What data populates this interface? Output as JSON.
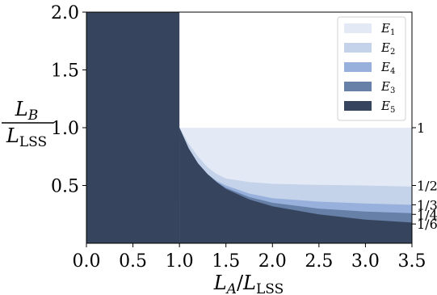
{
  "chart_data": {
    "type": "area",
    "xlim": [
      0.0,
      3.5
    ],
    "ylim": [
      0.0,
      2.0
    ],
    "x_ticks": [
      "0.0",
      "0.5",
      "1.0",
      "1.5",
      "2.0",
      "2.5",
      "3.0",
      "3.5"
    ],
    "y_ticks": [
      "0.5",
      "1.0",
      "1.5",
      "2.0"
    ],
    "right_ticks": [
      {
        "label": "1",
        "y": 1.0
      },
      {
        "label": "1/2",
        "y": 0.5
      },
      {
        "label": "1/3",
        "y": 0.333
      },
      {
        "label": "1/4",
        "y": 0.25
      },
      {
        "label": "1/6",
        "y": 0.167
      }
    ],
    "xlabel": {
      "main": "L",
      "sub1": "A",
      "slash": "/",
      "main2": "L",
      "sub2": "LSS"
    },
    "ylabel": {
      "top": "L",
      "top_sub": "B",
      "bottom": "L",
      "bottom_sub": "LSS"
    },
    "legend_position": "top-right",
    "regions": [
      {
        "name": "E",
        "sub": "1",
        "color": "#e3eaf5",
        "description": "region above 1/2-limit curve, below y=1 for x>=1"
      },
      {
        "name": "E",
        "sub": "2",
        "color": "#c5d3ea",
        "asymptote": 0.5
      },
      {
        "name": "E",
        "sub": "4",
        "color": "#97b1dc",
        "asymptote": 0.333
      },
      {
        "name": "E",
        "sub": "3",
        "color": "#6680a8",
        "asymptote": 0.25
      },
      {
        "name": "E",
        "sub": "5",
        "color": "#36455d",
        "asymptote": 0.167
      }
    ],
    "boundary_curves": [
      {
        "limit": 0.5,
        "points": [
          [
            1.0,
            1.0
          ],
          [
            1.1,
            0.86
          ],
          [
            1.2,
            0.75
          ],
          [
            1.3,
            0.66
          ],
          [
            1.4,
            0.6
          ],
          [
            1.5,
            0.56
          ],
          [
            1.75,
            0.53
          ],
          [
            2.0,
            0.515
          ],
          [
            2.5,
            0.505
          ],
          [
            3.0,
            0.5
          ],
          [
            3.5,
            0.49
          ]
        ]
      },
      {
        "limit": 0.333,
        "points": [
          [
            1.0,
            1.0
          ],
          [
            1.1,
            0.82
          ],
          [
            1.2,
            0.69
          ],
          [
            1.3,
            0.6
          ],
          [
            1.4,
            0.54
          ],
          [
            1.5,
            0.5
          ],
          [
            1.75,
            0.43
          ],
          [
            2.0,
            0.39
          ],
          [
            2.5,
            0.36
          ],
          [
            3.0,
            0.345
          ],
          [
            3.5,
            0.333
          ]
        ]
      },
      {
        "limit": 0.25,
        "points": [
          [
            1.0,
            1.0
          ],
          [
            1.1,
            0.82
          ],
          [
            1.2,
            0.69
          ],
          [
            1.3,
            0.6
          ],
          [
            1.4,
            0.53
          ],
          [
            1.5,
            0.48
          ],
          [
            1.75,
            0.4
          ],
          [
            2.0,
            0.35
          ],
          [
            2.5,
            0.3
          ],
          [
            3.0,
            0.275
          ],
          [
            3.5,
            0.26
          ]
        ]
      },
      {
        "limit": 0.167,
        "points": [
          [
            1.0,
            1.0
          ],
          [
            1.1,
            0.82
          ],
          [
            1.2,
            0.69
          ],
          [
            1.3,
            0.6
          ],
          [
            1.4,
            0.53
          ],
          [
            1.5,
            0.47
          ],
          [
            1.75,
            0.38
          ],
          [
            2.0,
            0.32
          ],
          [
            2.5,
            0.25
          ],
          [
            3.0,
            0.205
          ],
          [
            3.5,
            0.18
          ]
        ]
      }
    ]
  }
}
